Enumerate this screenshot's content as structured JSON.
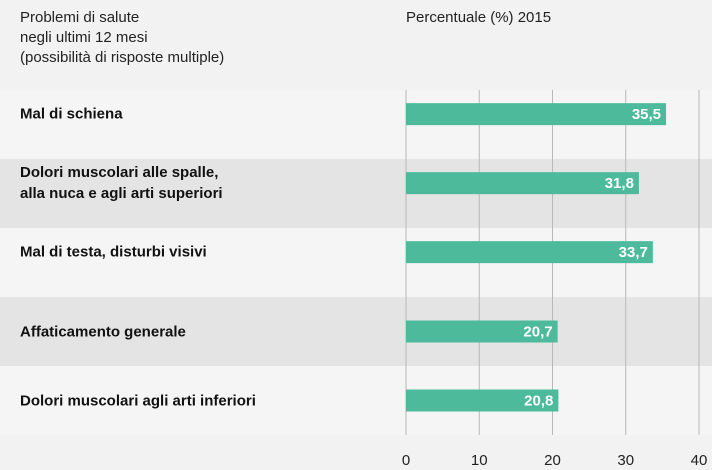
{
  "chart_data": {
    "type": "bar",
    "orientation": "horizontal",
    "category_header": "Problemi di salute\nnegli ultimi 12 mesi\n(possibilità di risposte multiple)",
    "value_header": "Percentuale (%) 2015",
    "categories": [
      "Mal di schiena",
      "Dolori muscolari alle spalle,\nalla nuca e agli arti superiori",
      "Mal di testa, disturbi visivi",
      "Affaticamento generale",
      "Dolori muscolari agli arti inferiori"
    ],
    "values": [
      35.5,
      31.8,
      33.7,
      20.7,
      20.8
    ],
    "value_labels": [
      "35,5",
      "31,8",
      "33,7",
      "20,7",
      "20,8"
    ],
    "color": "#4dbb9b",
    "xlim": [
      0,
      40
    ],
    "xticks": [
      0,
      10,
      20,
      30,
      40
    ],
    "grid": true
  }
}
